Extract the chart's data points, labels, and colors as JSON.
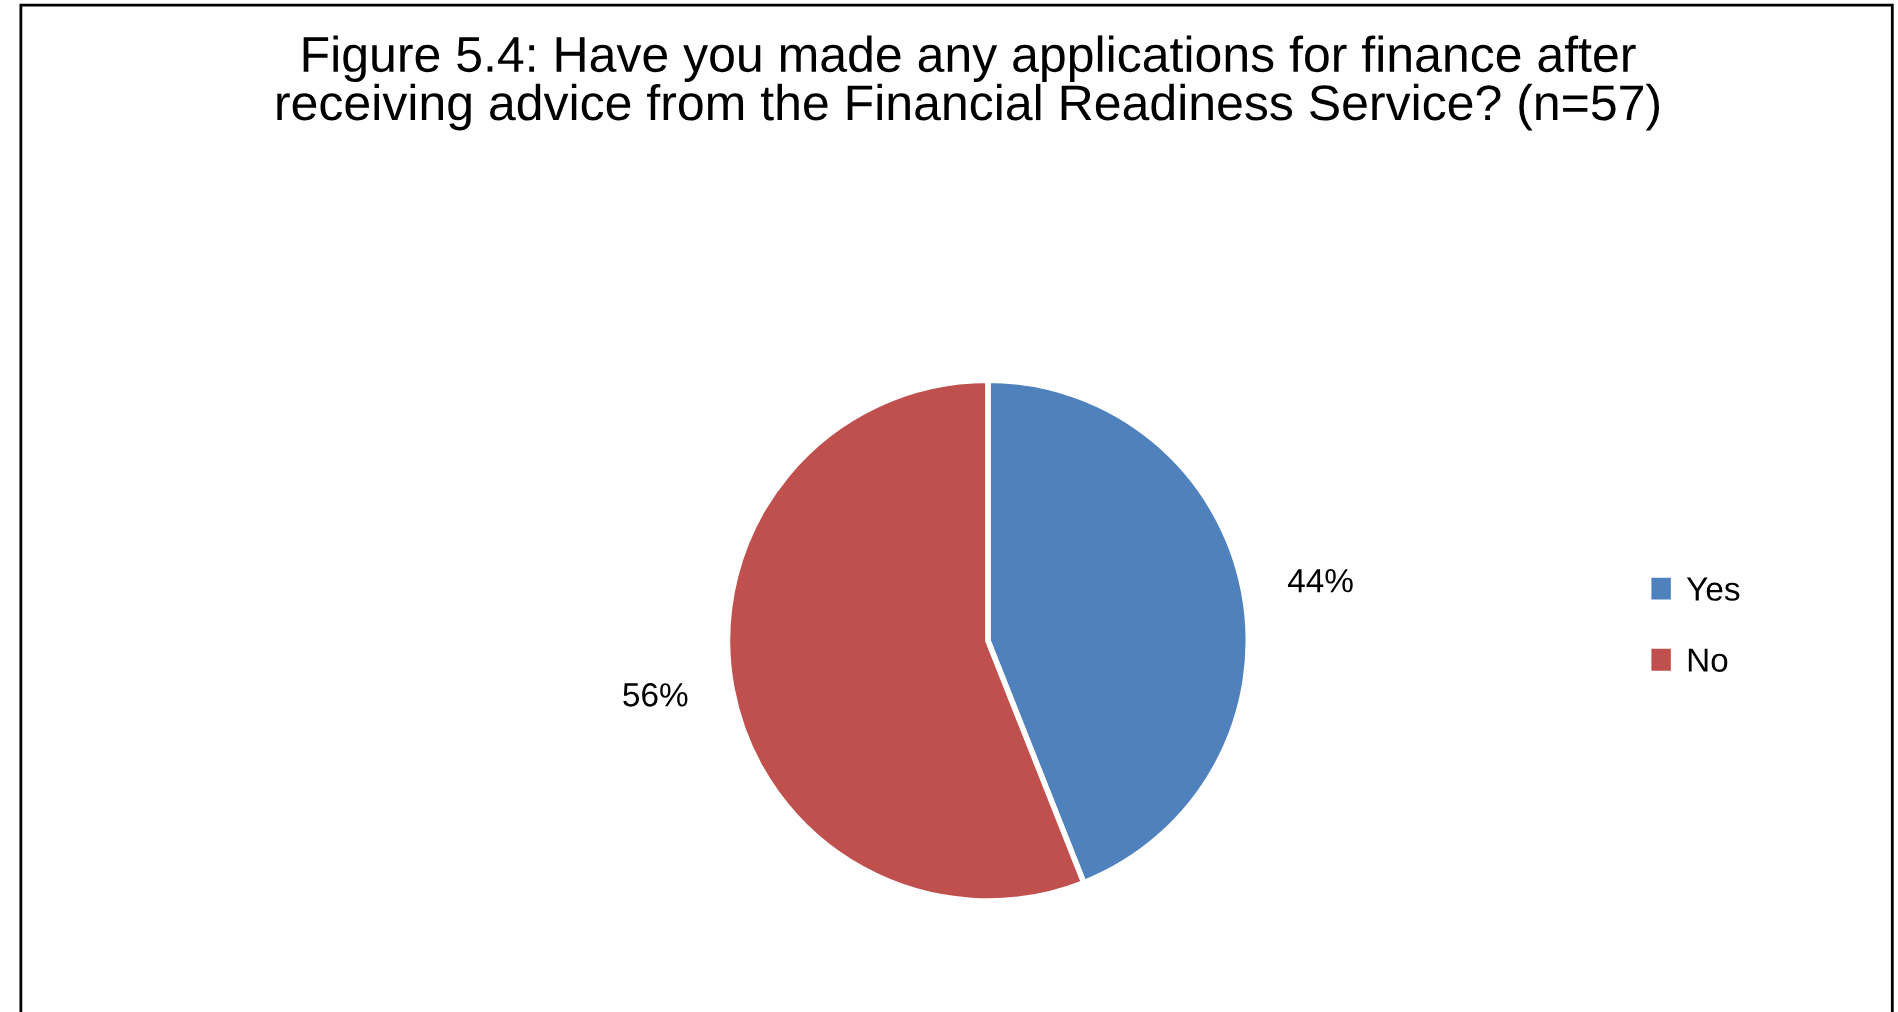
{
  "chart_data": {
    "type": "pie",
    "title": "Figure 5.4: Have you made any applications for finance after receiving advice from the Financial Readiness Service? (n=57)",
    "categories": [
      "Yes",
      "No"
    ],
    "values": [
      44,
      56
    ],
    "colors": [
      "#4f81bd",
      "#c0504d"
    ],
    "value_labels": [
      "44%",
      "56%"
    ],
    "legend": "right"
  }
}
